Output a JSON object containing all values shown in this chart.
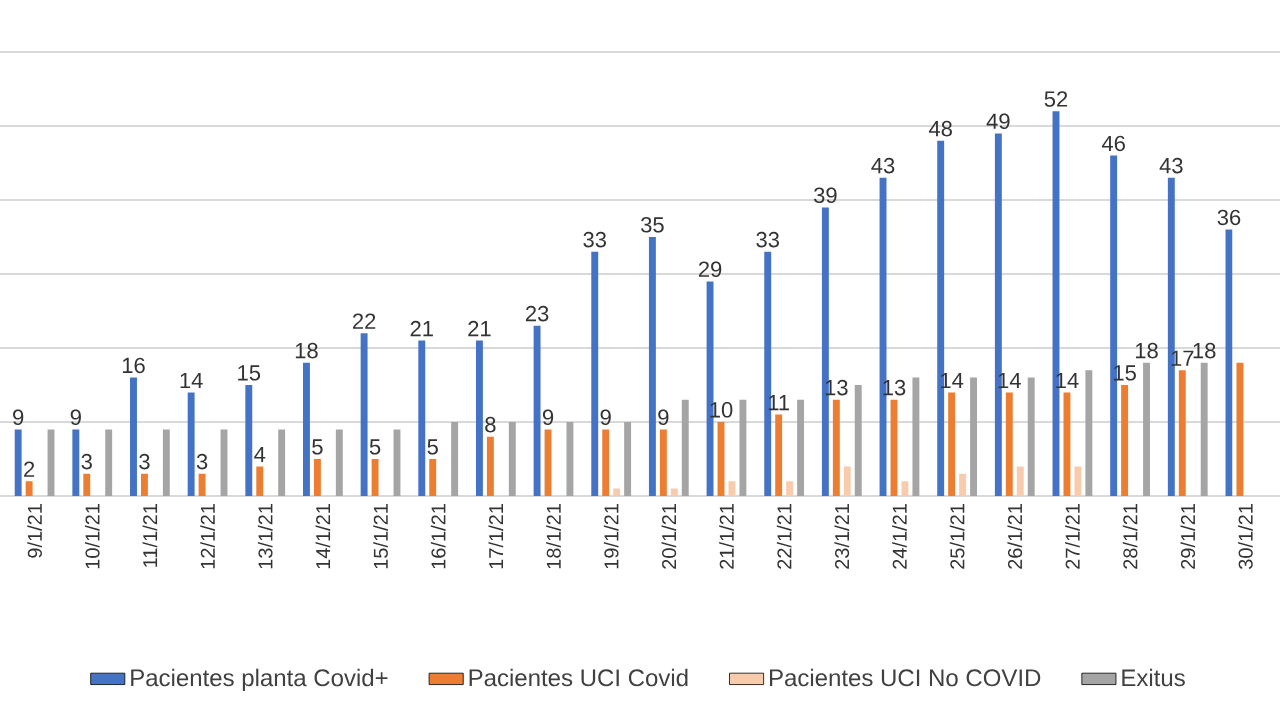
{
  "chart_data": {
    "type": "bar",
    "categories": [
      "9/1/21",
      "10/1/21",
      "11/1/21",
      "12/1/21",
      "13/1/21",
      "14/1/21",
      "15/1/21",
      "16/1/21",
      "17/1/21",
      "18/1/21",
      "19/1/21",
      "20/1/21",
      "21/1/21",
      "22/1/21",
      "23/1/21",
      "24/1/21",
      "25/1/21",
      "26/1/21",
      "27/1/21",
      "28/1/21",
      "29/1/21",
      "30/1/21"
    ],
    "series": [
      {
        "name": "Pacientes planta Covid+",
        "color": "#4472c4",
        "values": [
          9,
          9,
          16,
          14,
          15,
          18,
          22,
          21,
          21,
          23,
          33,
          35,
          29,
          33,
          39,
          43,
          48,
          49,
          52,
          46,
          43,
          36
        ],
        "value_labels": [
          "9",
          "9",
          "16",
          "14",
          "15",
          "18",
          "22",
          "21",
          "21",
          "23",
          "33",
          "35",
          "29",
          "33",
          "39",
          "43",
          "48",
          "49",
          "52",
          "46",
          "43",
          "36"
        ]
      },
      {
        "name": "Pacientes UCI Covid",
        "color": "#ed7d31",
        "values": [
          2,
          3,
          3,
          3,
          4,
          5,
          5,
          5,
          8,
          9,
          9,
          9,
          10,
          11,
          13,
          13,
          14,
          14,
          14,
          15,
          17,
          18
        ],
        "value_labels": [
          "2",
          "3",
          "3",
          "3",
          "4",
          "5",
          "5",
          "5",
          "8",
          "9",
          "9",
          "9",
          "10",
          "11",
          "13",
          "13",
          "14",
          "14",
          "14",
          "15",
          "17",
          null
        ]
      },
      {
        "name": "Pacientes UCI No COVID",
        "color": "#f8cbad",
        "values": [
          0,
          0,
          0,
          0,
          0,
          0,
          0,
          0,
          0,
          0,
          1,
          1,
          2,
          2,
          4,
          2,
          3,
          4,
          4,
          0,
          0,
          null
        ]
      },
      {
        "name": "Exitus",
        "color": "#a5a5a5",
        "values": [
          9,
          9,
          9,
          9,
          9,
          9,
          9,
          10,
          10,
          10,
          10,
          13,
          13,
          13,
          15,
          16,
          16,
          16,
          17,
          18,
          18,
          null
        ],
        "value_labels": [
          null,
          null,
          null,
          null,
          null,
          null,
          null,
          null,
          null,
          null,
          null,
          null,
          null,
          null,
          null,
          null,
          null,
          null,
          null,
          "18",
          "18",
          null
        ]
      }
    ],
    "ylim": [
      0,
      60
    ],
    "yticks": [
      {
        "value": 0,
        "label": null
      },
      {
        "value": 10,
        "label": null
      },
      {
        "value": 20,
        "label": null
      },
      {
        "value": 30,
        "label": null
      },
      {
        "value": 40,
        "label": null
      },
      {
        "value": 50,
        "label": null
      },
      {
        "value": 60,
        "label": null
      }
    ],
    "grid": "y",
    "legend": "bottom",
    "tick_labels": "x"
  }
}
